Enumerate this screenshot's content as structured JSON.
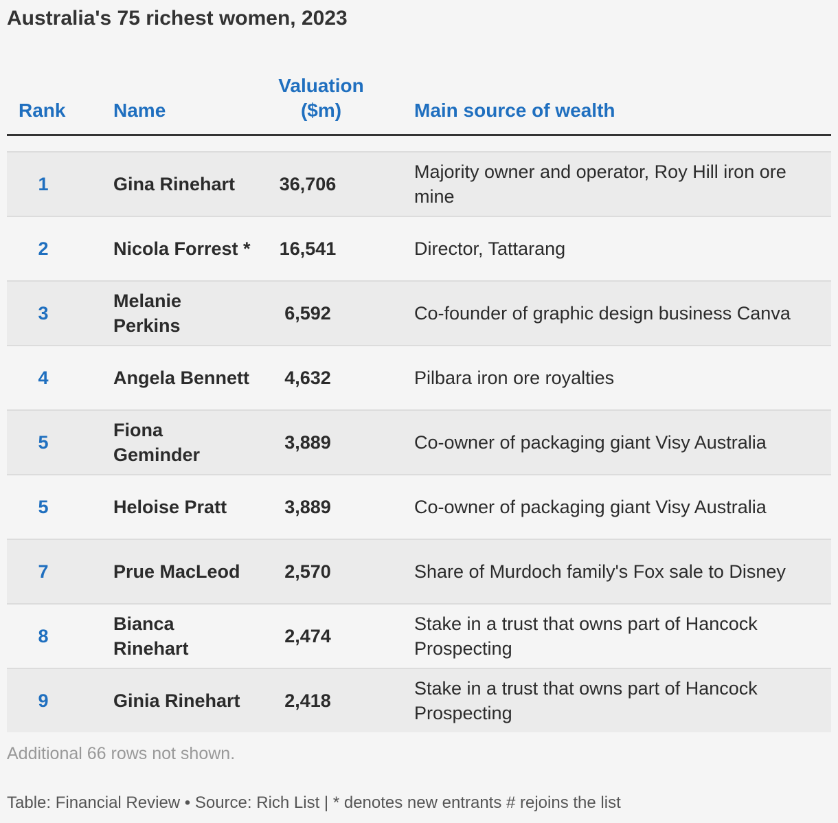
{
  "title": "Australia's 75 richest women, 2023",
  "columns": {
    "rank": "Rank",
    "name": "Name",
    "valuation_line1": "Valuation",
    "valuation_line2": "($m)",
    "source": "Main source of wealth"
  },
  "chart_data": {
    "type": "table",
    "title": "Australia's 75 richest women, 2023",
    "columns": [
      "Rank",
      "Name",
      "Valuation ($m)",
      "Main source of wealth"
    ],
    "rows": [
      {
        "rank": "1",
        "name": "Gina Rinehart",
        "valuation": "36,706",
        "source": "Majority owner and operator, Roy Hill iron ore mine"
      },
      {
        "rank": "2",
        "name": "Nicola Forrest *",
        "valuation": "16,541",
        "source": "Director, Tattarang"
      },
      {
        "rank": "3",
        "name": "Melanie Perkins",
        "valuation": "6,592",
        "source": "Co-founder of graphic design business Canva"
      },
      {
        "rank": "4",
        "name": "Angela Bennett",
        "valuation": "4,632",
        "source": "Pilbara iron ore royalties"
      },
      {
        "rank": "5",
        "name": "Fiona Geminder",
        "valuation": "3,889",
        "source": "Co-owner of packaging giant Visy Australia"
      },
      {
        "rank": "5",
        "name": "Heloise Pratt",
        "valuation": "3,889",
        "source": "Co-owner of packaging giant Visy Australia"
      },
      {
        "rank": "7",
        "name": "Prue MacLeod",
        "valuation": "2,570",
        "source": "Share of Murdoch family's Fox sale to Disney"
      },
      {
        "rank": "8",
        "name": "Bianca Rinehart",
        "valuation": "2,474",
        "source": "Stake in a trust that owns part of Hancock Prospecting"
      },
      {
        "rank": "9",
        "name": "Ginia Rinehart",
        "valuation": "2,418",
        "source": "Stake in a trust that owns part of Hancock Prospecting"
      }
    ]
  },
  "more_rows_note": "Additional 66 rows not shown.",
  "footer": "Table: Financial Review • Source: Rich List | * denotes new entrants # rejoins the list",
  "colors": {
    "accent": "#1f6fbf",
    "text": "#2b2b2b",
    "row_alt": "#ebebeb",
    "background": "#f5f5f5"
  }
}
